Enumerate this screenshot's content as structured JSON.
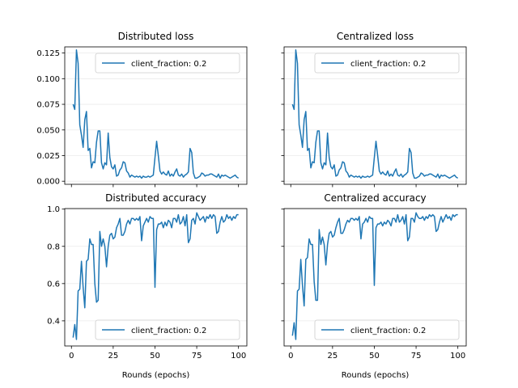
{
  "chart_data": [
    {
      "type": "line",
      "title": "Distributed loss",
      "xlabel": "",
      "ylabel": "",
      "xlim": [
        -4,
        105
      ],
      "ylim": [
        -0.003,
        0.131
      ],
      "xticks": [
        0,
        25,
        50,
        75,
        100
      ],
      "yticks": [
        0.0,
        0.025,
        0.05,
        0.075,
        0.1,
        0.125
      ],
      "ytick_labels": [
        "0.000",
        "0.025",
        "0.050",
        "0.075",
        "0.100",
        "0.125"
      ],
      "show_yticklabels": true,
      "show_xticklabels": false,
      "grid": "horizontal",
      "legend": "upper right",
      "series": [
        {
          "name": "client_fraction: 0.2",
          "color": "#1f77b4",
          "x": [
            1,
            2,
            3,
            4,
            5,
            6,
            7,
            8,
            9,
            10,
            11,
            12,
            13,
            14,
            15,
            16,
            17,
            18,
            19,
            20,
            21,
            22,
            23,
            24,
            25,
            26,
            27,
            28,
            29,
            30,
            31,
            32,
            33,
            34,
            35,
            36,
            37,
            38,
            39,
            40,
            41,
            42,
            43,
            44,
            45,
            46,
            47,
            48,
            49,
            50,
            51,
            52,
            53,
            54,
            55,
            56,
            57,
            58,
            59,
            60,
            61,
            62,
            63,
            64,
            65,
            66,
            67,
            68,
            69,
            70,
            71,
            72,
            73,
            74,
            75,
            76,
            77,
            78,
            79,
            80,
            81,
            82,
            83,
            84,
            85,
            86,
            87,
            88,
            89,
            90,
            91,
            92,
            93,
            94,
            95,
            96,
            97,
            98,
            99,
            100
          ],
          "y": [
            0.075,
            0.07,
            0.128,
            0.115,
            0.055,
            0.045,
            0.033,
            0.06,
            0.068,
            0.03,
            0.032,
            0.013,
            0.019,
            0.018,
            0.038,
            0.049,
            0.049,
            0.018,
            0.012,
            0.018,
            0.016,
            0.047,
            0.023,
            0.014,
            0.012,
            0.016,
            0.005,
            0.006,
            0.011,
            0.013,
            0.019,
            0.018,
            0.01,
            0.008,
            0.004,
            0.006,
            0.005,
            0.004,
            0.005,
            0.004,
            0.005,
            0.003,
            0.005,
            0.004,
            0.004,
            0.005,
            0.004,
            0.005,
            0.006,
            0.023,
            0.039,
            0.025,
            0.01,
            0.007,
            0.009,
            0.007,
            0.006,
            0.01,
            0.005,
            0.007,
            0.005,
            0.009,
            0.012,
            0.006,
            0.005,
            0.007,
            0.004,
            0.006,
            0.007,
            0.009,
            0.032,
            0.028,
            0.008,
            0.003,
            0.003,
            0.004,
            0.005,
            0.008,
            0.007,
            0.005,
            0.006,
            0.006,
            0.007,
            0.007,
            0.006,
            0.005,
            0.004,
            0.007,
            0.003,
            0.006,
            0.005,
            0.006,
            0.005,
            0.004,
            0.003,
            0.004,
            0.005,
            0.006,
            0.004,
            0.003
          ]
        }
      ]
    },
    {
      "type": "line",
      "title": "Centralized loss",
      "xlabel": "",
      "ylabel": "",
      "xlim": [
        -4,
        105
      ],
      "ylim": [
        -0.003,
        0.131
      ],
      "xticks": [
        0,
        25,
        50,
        75,
        100
      ],
      "yticks": [
        0.0,
        0.025,
        0.05,
        0.075,
        0.1,
        0.125
      ],
      "show_yticklabels": false,
      "show_xticklabels": false,
      "grid": "horizontal",
      "legend": "upper right",
      "series": [
        {
          "name": "client_fraction: 0.2",
          "color": "#1f77b4",
          "x": [
            1,
            2,
            3,
            4,
            5,
            6,
            7,
            8,
            9,
            10,
            11,
            12,
            13,
            14,
            15,
            16,
            17,
            18,
            19,
            20,
            21,
            22,
            23,
            24,
            25,
            26,
            27,
            28,
            29,
            30,
            31,
            32,
            33,
            34,
            35,
            36,
            37,
            38,
            39,
            40,
            41,
            42,
            43,
            44,
            45,
            46,
            47,
            48,
            49,
            50,
            51,
            52,
            53,
            54,
            55,
            56,
            57,
            58,
            59,
            60,
            61,
            62,
            63,
            64,
            65,
            66,
            67,
            68,
            69,
            70,
            71,
            72,
            73,
            74,
            75,
            76,
            77,
            78,
            79,
            80,
            81,
            82,
            83,
            84,
            85,
            86,
            87,
            88,
            89,
            90,
            91,
            92,
            93,
            94,
            95,
            96,
            97,
            98,
            99,
            100
          ],
          "y": [
            0.075,
            0.07,
            0.128,
            0.115,
            0.055,
            0.045,
            0.033,
            0.06,
            0.068,
            0.03,
            0.032,
            0.013,
            0.019,
            0.018,
            0.038,
            0.049,
            0.049,
            0.018,
            0.012,
            0.018,
            0.016,
            0.047,
            0.023,
            0.014,
            0.012,
            0.016,
            0.005,
            0.006,
            0.011,
            0.013,
            0.019,
            0.018,
            0.01,
            0.008,
            0.004,
            0.006,
            0.005,
            0.004,
            0.005,
            0.004,
            0.005,
            0.003,
            0.005,
            0.004,
            0.004,
            0.005,
            0.004,
            0.005,
            0.006,
            0.023,
            0.039,
            0.025,
            0.01,
            0.007,
            0.009,
            0.007,
            0.006,
            0.01,
            0.005,
            0.007,
            0.005,
            0.009,
            0.012,
            0.006,
            0.005,
            0.007,
            0.004,
            0.006,
            0.007,
            0.009,
            0.032,
            0.028,
            0.008,
            0.003,
            0.003,
            0.004,
            0.005,
            0.008,
            0.007,
            0.005,
            0.006,
            0.006,
            0.007,
            0.007,
            0.006,
            0.005,
            0.004,
            0.007,
            0.003,
            0.006,
            0.005,
            0.006,
            0.005,
            0.004,
            0.003,
            0.004,
            0.005,
            0.006,
            0.004,
            0.003
          ]
        }
      ]
    },
    {
      "type": "line",
      "title": "Distributed accuracy",
      "xlabel": "Rounds (epochs)",
      "ylabel": "",
      "xlim": [
        -4,
        105
      ],
      "ylim": [
        0.265,
        1.003
      ],
      "xticks": [
        0,
        25,
        50,
        75,
        100
      ],
      "xtick_labels": [
        "0",
        "25",
        "50",
        "75",
        "100"
      ],
      "yticks": [
        0.4,
        0.6,
        0.8,
        1.0
      ],
      "ytick_labels": [
        "0.4",
        "0.6",
        "0.8",
        "1.0"
      ],
      "show_yticklabels": true,
      "show_xticklabels": true,
      "grid": "horizontal",
      "legend": "lower right",
      "series": [
        {
          "name": "client_fraction: 0.2",
          "color": "#1f77b4",
          "x": [
            1,
            2,
            3,
            4,
            5,
            6,
            7,
            8,
            9,
            10,
            11,
            12,
            13,
            14,
            15,
            16,
            17,
            18,
            19,
            20,
            21,
            22,
            23,
            24,
            25,
            26,
            27,
            28,
            29,
            30,
            31,
            32,
            33,
            34,
            35,
            36,
            37,
            38,
            39,
            40,
            41,
            42,
            43,
            44,
            45,
            46,
            47,
            48,
            49,
            50,
            51,
            52,
            53,
            54,
            55,
            56,
            57,
            58,
            59,
            60,
            61,
            62,
            63,
            64,
            65,
            66,
            67,
            68,
            69,
            70,
            71,
            72,
            73,
            74,
            75,
            76,
            77,
            78,
            79,
            80,
            81,
            82,
            83,
            84,
            85,
            86,
            87,
            88,
            89,
            90,
            91,
            92,
            93,
            94,
            95,
            96,
            97,
            98,
            99,
            100
          ],
          "y": [
            0.31,
            0.38,
            0.3,
            0.56,
            0.57,
            0.72,
            0.58,
            0.47,
            0.72,
            0.73,
            0.84,
            0.81,
            0.81,
            0.6,
            0.5,
            0.51,
            0.88,
            0.8,
            0.84,
            0.8,
            0.69,
            0.8,
            0.86,
            0.87,
            0.84,
            0.85,
            0.9,
            0.92,
            0.95,
            0.86,
            0.86,
            0.88,
            0.92,
            0.94,
            0.92,
            0.95,
            0.95,
            0.94,
            0.95,
            0.94,
            0.96,
            0.83,
            0.91,
            0.93,
            0.95,
            0.93,
            0.96,
            0.95,
            0.95,
            0.58,
            0.89,
            0.92,
            0.92,
            0.93,
            0.9,
            0.93,
            0.91,
            0.94,
            0.93,
            0.9,
            0.95,
            0.95,
            0.93,
            0.97,
            0.92,
            0.93,
            0.96,
            0.91,
            0.97,
            0.82,
            0.84,
            0.94,
            0.95,
            0.92,
            0.98,
            0.96,
            0.94,
            0.95,
            0.96,
            0.93,
            0.96,
            0.95,
            0.97,
            0.95,
            0.97,
            0.96,
            0.87,
            0.88,
            0.93,
            0.96,
            0.93,
            0.94,
            0.97,
            0.95,
            0.96,
            0.94,
            0.96,
            0.95,
            0.97,
            0.97
          ]
        }
      ]
    },
    {
      "type": "line",
      "title": "Centralized accuracy",
      "xlabel": "Rounds (epochs)",
      "ylabel": "",
      "xlim": [
        -4,
        105
      ],
      "ylim": [
        0.265,
        1.003
      ],
      "xticks": [
        0,
        25,
        50,
        75,
        100
      ],
      "xtick_labels": [
        "0",
        "25",
        "50",
        "75",
        "100"
      ],
      "yticks": [
        0.4,
        0.6,
        0.8,
        1.0
      ],
      "show_yticklabels": false,
      "show_xticklabels": true,
      "grid": "horizontal",
      "legend": "lower right",
      "series": [
        {
          "name": "client_fraction: 0.2",
          "color": "#1f77b4",
          "x": [
            1,
            2,
            3,
            4,
            5,
            6,
            7,
            8,
            9,
            10,
            11,
            12,
            13,
            14,
            15,
            16,
            17,
            18,
            19,
            20,
            21,
            22,
            23,
            24,
            25,
            26,
            27,
            28,
            29,
            30,
            31,
            32,
            33,
            34,
            35,
            36,
            37,
            38,
            39,
            40,
            41,
            42,
            43,
            44,
            45,
            46,
            47,
            48,
            49,
            50,
            51,
            52,
            53,
            54,
            55,
            56,
            57,
            58,
            59,
            60,
            61,
            62,
            63,
            64,
            65,
            66,
            67,
            68,
            69,
            70,
            71,
            72,
            73,
            74,
            75,
            76,
            77,
            78,
            79,
            80,
            81,
            82,
            83,
            84,
            85,
            86,
            87,
            88,
            89,
            90,
            91,
            92,
            93,
            94,
            95,
            96,
            97,
            98,
            99,
            100
          ],
          "y": [
            0.32,
            0.39,
            0.3,
            0.56,
            0.57,
            0.73,
            0.59,
            0.48,
            0.73,
            0.74,
            0.84,
            0.81,
            0.81,
            0.61,
            0.51,
            0.51,
            0.89,
            0.81,
            0.85,
            0.81,
            0.7,
            0.81,
            0.87,
            0.88,
            0.85,
            0.86,
            0.9,
            0.93,
            0.95,
            0.87,
            0.87,
            0.89,
            0.92,
            0.94,
            0.93,
            0.95,
            0.95,
            0.94,
            0.95,
            0.94,
            0.96,
            0.84,
            0.92,
            0.93,
            0.95,
            0.93,
            0.96,
            0.95,
            0.95,
            0.59,
            0.9,
            0.92,
            0.92,
            0.93,
            0.91,
            0.93,
            0.92,
            0.94,
            0.93,
            0.91,
            0.95,
            0.95,
            0.93,
            0.97,
            0.93,
            0.94,
            0.96,
            0.92,
            0.97,
            0.83,
            0.85,
            0.95,
            0.95,
            0.93,
            0.98,
            0.96,
            0.95,
            0.95,
            0.96,
            0.94,
            0.96,
            0.95,
            0.97,
            0.96,
            0.97,
            0.96,
            0.88,
            0.89,
            0.93,
            0.96,
            0.93,
            0.95,
            0.97,
            0.95,
            0.96,
            0.94,
            0.97,
            0.96,
            0.97,
            0.97
          ]
        }
      ]
    }
  ]
}
